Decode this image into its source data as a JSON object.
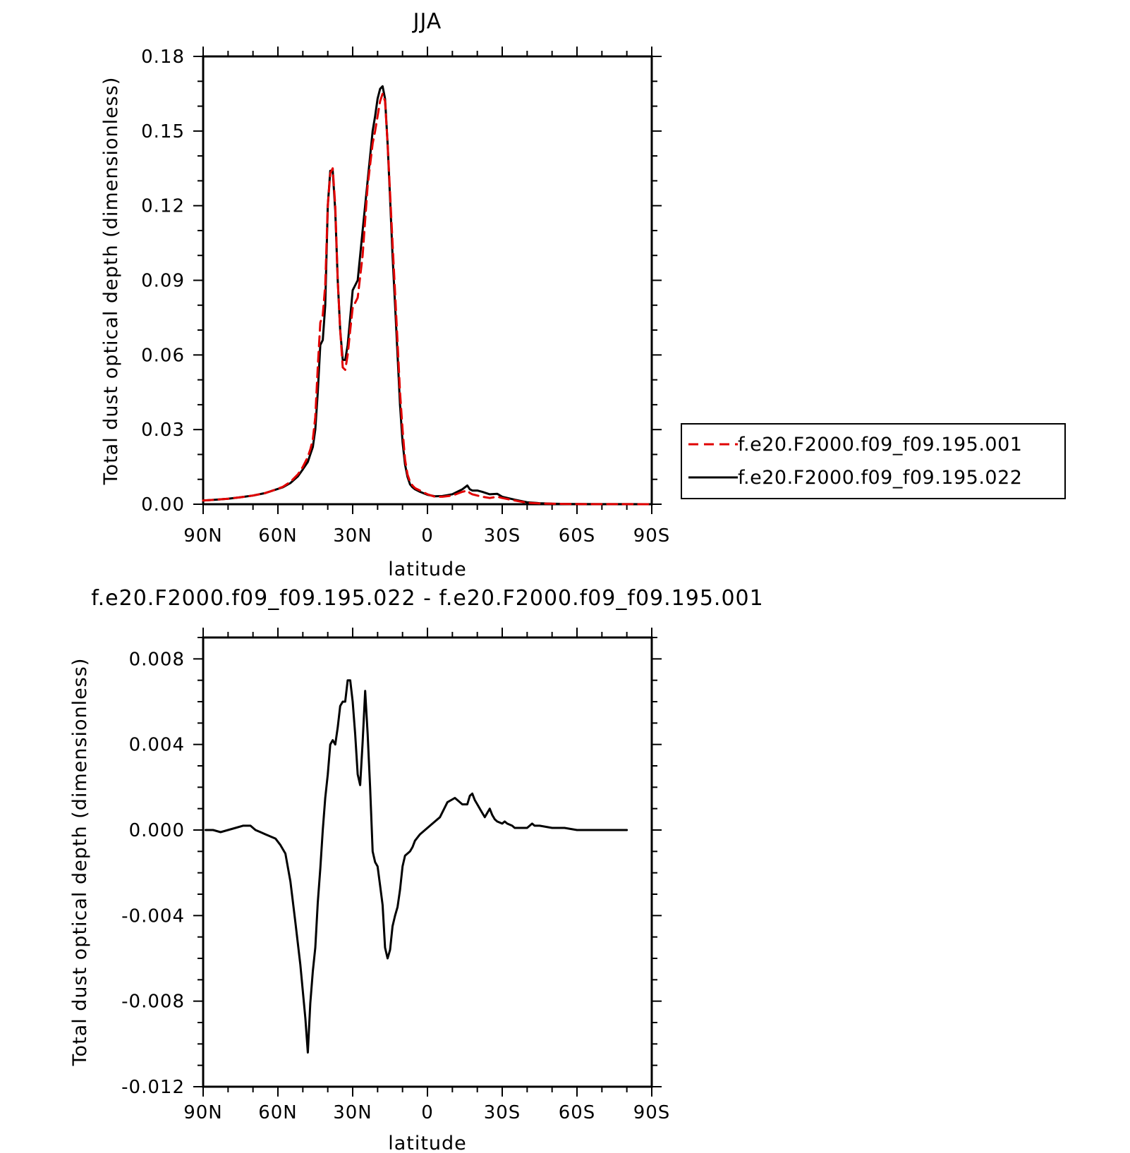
{
  "chart_data": [
    {
      "type": "line",
      "title": "JJA",
      "xlabel": "latitude",
      "ylabel": "Total dust optical depth (dimensionless)",
      "xlim": [
        90,
        -90
      ],
      "ylim": [
        0,
        0.18
      ],
      "x_ticks": [
        90,
        60,
        30,
        0,
        -30,
        -60,
        -90
      ],
      "x_tick_labels": [
        "90N",
        "60N",
        "30N",
        "0",
        "30S",
        "60S",
        "90S"
      ],
      "y_ticks": [
        0,
        0.03,
        0.06,
        0.09,
        0.12,
        0.15,
        0.18
      ],
      "y_tick_labels": [
        "0.00",
        "0.03",
        "0.06",
        "0.09",
        "0.12",
        "0.15",
        "0.18"
      ],
      "legend_position": "right",
      "series": [
        {
          "name": "f.e20.F2000.f09_f09.195.001",
          "color": "#e00000",
          "dash": "dashed",
          "x": [
            90,
            85,
            80,
            75,
            70,
            65,
            62,
            58,
            55,
            52,
            50,
            48,
            47,
            46,
            45,
            44,
            43,
            42,
            41,
            40,
            39,
            38,
            37,
            36,
            35,
            34,
            33,
            32,
            31,
            30,
            28,
            26,
            24,
            22,
            21,
            20,
            19,
            18,
            17,
            16,
            15,
            14,
            13,
            12,
            11,
            10,
            9,
            8,
            7,
            6,
            5,
            3,
            0,
            -3,
            -6,
            -10,
            -14,
            -16,
            -17,
            -18,
            -20,
            -22,
            -25,
            -28,
            -30,
            -35,
            -40,
            -45,
            -50,
            -55,
            -60,
            -70,
            -80,
            -90
          ],
          "y": [
            0.0015,
            0.0018,
            0.0022,
            0.0028,
            0.0035,
            0.0045,
            0.0055,
            0.007,
            0.009,
            0.012,
            0.015,
            0.019,
            0.022,
            0.026,
            0.035,
            0.055,
            0.073,
            0.076,
            0.088,
            0.12,
            0.133,
            0.135,
            0.12,
            0.09,
            0.07,
            0.055,
            0.054,
            0.06,
            0.07,
            0.079,
            0.083,
            0.1,
            0.128,
            0.145,
            0.15,
            0.156,
            0.162,
            0.165,
            0.162,
            0.145,
            0.125,
            0.105,
            0.085,
            0.065,
            0.045,
            0.03,
            0.018,
            0.012,
            0.009,
            0.0075,
            0.0065,
            0.0055,
            0.004,
            0.003,
            0.003,
            0.0035,
            0.005,
            0.0055,
            0.0045,
            0.004,
            0.0035,
            0.003,
            0.0025,
            0.003,
            0.0025,
            0.0015,
            0.0006,
            0.0003,
            0.0002,
            0.0001,
            5e-05,
            3e-05,
            2e-05,
            0.0
          ]
        },
        {
          "name": "f.e20.F2000.f09_f09.195.022",
          "color": "#000000",
          "dash": "solid",
          "x": [
            90,
            85,
            80,
            75,
            70,
            65,
            62,
            58,
            55,
            52,
            50,
            48,
            47,
            46,
            45,
            44,
            43,
            42,
            41,
            40,
            39,
            38,
            37,
            36,
            35,
            34,
            33,
            32,
            31,
            30,
            28,
            26,
            24,
            22,
            21,
            20,
            19,
            18,
            17,
            16,
            15,
            14,
            13,
            12,
            11,
            10,
            9,
            8,
            7,
            6,
            5,
            3,
            0,
            -3,
            -6,
            -10,
            -14,
            -16,
            -17,
            -18,
            -20,
            -22,
            -25,
            -28,
            -30,
            -35,
            -40,
            -45,
            -50,
            -55,
            -60,
            -70,
            -80,
            -90
          ],
          "y": [
            0.0015,
            0.0018,
            0.0022,
            0.0028,
            0.0035,
            0.0045,
            0.0055,
            0.0068,
            0.0085,
            0.0112,
            0.014,
            0.017,
            0.02,
            0.023,
            0.03,
            0.045,
            0.064,
            0.066,
            0.08,
            0.12,
            0.134,
            0.134,
            0.118,
            0.09,
            0.07,
            0.058,
            0.058,
            0.064,
            0.075,
            0.086,
            0.09,
            0.11,
            0.13,
            0.15,
            0.156,
            0.163,
            0.167,
            0.168,
            0.163,
            0.145,
            0.123,
            0.1,
            0.08,
            0.06,
            0.04,
            0.025,
            0.016,
            0.011,
            0.008,
            0.0068,
            0.006,
            0.005,
            0.0038,
            0.0032,
            0.0033,
            0.004,
            0.006,
            0.0075,
            0.006,
            0.0055,
            0.0055,
            0.005,
            0.004,
            0.0042,
            0.003,
            0.0018,
            0.0008,
            0.0004,
            0.0002,
            0.0001,
            5e-05,
            3e-05,
            2e-05,
            0.0
          ]
        }
      ]
    },
    {
      "type": "line",
      "title": "f.e20.F2000.f09_f09.195.022 - f.e20.F2000.f09_f09.195.001",
      "xlabel": "latitude",
      "ylabel": "Total dust optical depth (dimensionless)",
      "xlim": [
        90,
        -90
      ],
      "ylim": [
        -0.012,
        0.009
      ],
      "x_ticks": [
        90,
        60,
        30,
        0,
        -30,
        -60,
        -90
      ],
      "x_tick_labels": [
        "90N",
        "60N",
        "30N",
        "0",
        "30S",
        "60S",
        "90S"
      ],
      "y_ticks": [
        -0.012,
        -0.008,
        -0.004,
        0.0,
        0.004,
        0.008
      ],
      "y_tick_labels": [
        "-0.012",
        "-0.008",
        "-0.004",
        "0.000",
        "0.004",
        "0.008"
      ],
      "series": [
        {
          "color": "#000000",
          "dash": "solid",
          "x": [
            89,
            86,
            83,
            80,
            77,
            74,
            71,
            69,
            67,
            65,
            63,
            61,
            59,
            57,
            55,
            53,
            51,
            49,
            48,
            47,
            46,
            45,
            44,
            43,
            42,
            41,
            40,
            39,
            38,
            37,
            36,
            35,
            34,
            33,
            32,
            31,
            30,
            29,
            28,
            27,
            26,
            25,
            24,
            23,
            22,
            21,
            20,
            19,
            18,
            17,
            16,
            15,
            14,
            13,
            12,
            11,
            10,
            9,
            8,
            7,
            6,
            5,
            3,
            1,
            -2,
            -5,
            -8,
            -11,
            -14,
            -16,
            -17,
            -18,
            -19,
            -20,
            -21,
            -22,
            -23,
            -25,
            -26,
            -27,
            -28,
            -30,
            -31,
            -32,
            -34,
            -35,
            -37,
            -40,
            -42,
            -43,
            -45,
            -50,
            -55,
            -60,
            -65,
            -70,
            -75,
            -80
          ],
          "y": [
            0.0,
            0.0,
            -0.0001,
            0.0,
            0.0001,
            0.0002,
            0.0002,
            0.0,
            -0.0001,
            -0.0002,
            -0.0003,
            -0.0004,
            -0.0007,
            -0.0011,
            -0.0024,
            -0.0043,
            -0.0063,
            -0.0088,
            -0.0104,
            -0.0081,
            -0.0066,
            -0.0055,
            -0.0034,
            -0.0018,
            0.0,
            0.0015,
            0.0026,
            0.004,
            0.0042,
            0.004,
            0.0048,
            0.0058,
            0.006,
            0.006,
            0.007,
            0.007,
            0.006,
            0.0045,
            0.0026,
            0.0021,
            0.0041,
            0.0065,
            0.0045,
            0.002,
            -0.001,
            -0.0015,
            -0.0017,
            -0.0026,
            -0.0035,
            -0.0055,
            -0.006,
            -0.0056,
            -0.0045,
            -0.004,
            -0.0036,
            -0.0028,
            -0.0017,
            -0.0012,
            -0.0011,
            -0.001,
            -0.0008,
            -0.0005,
            -0.0002,
            0.0,
            0.0003,
            0.0006,
            0.0013,
            0.0015,
            0.0012,
            0.0012,
            0.0016,
            0.0017,
            0.0014,
            0.0012,
            0.001,
            0.0008,
            0.0006,
            0.001,
            0.0007,
            0.0005,
            0.0004,
            0.0003,
            0.0004,
            0.0003,
            0.0002,
            0.0001,
            0.0001,
            0.0001,
            0.0003,
            0.0002,
            0.0002,
            0.0001,
            0.0001,
            0.0,
            0.0,
            0.0,
            0.0,
            0.0
          ]
        }
      ]
    }
  ]
}
